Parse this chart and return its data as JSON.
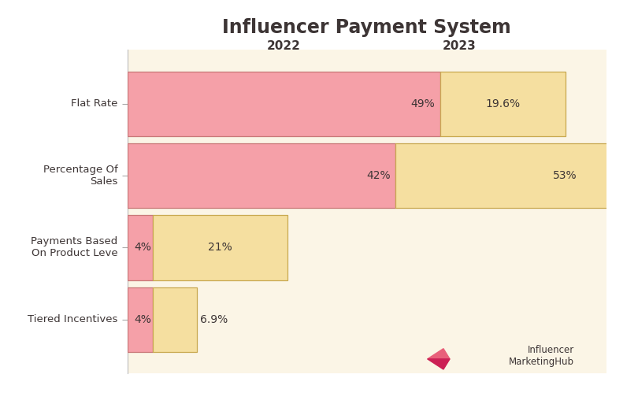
{
  "title": "Influencer Payment System",
  "categories": [
    "Tiered Incentives",
    "Payments Based\nOn Product Leve",
    "Percentage Of\nSales",
    "Flat Rate"
  ],
  "values_2022": [
    4,
    4,
    42,
    49
  ],
  "values_2023": [
    6.9,
    21,
    53,
    19.6
  ],
  "labels_2022": [
    "4%",
    "4%",
    "42%",
    "49%"
  ],
  "labels_2023": [
    "6.9%",
    "21%",
    "53%",
    "19.6%"
  ],
  "color_2022": "#F5A0A8",
  "color_2023": "#F5DFA0",
  "color_2022_border": "#C87878",
  "color_2023_border": "#C8A850",
  "bg_color": "#FBF5E6",
  "outer_bg": "#FFFFFF",
  "text_color": "#3D3535",
  "title_fontsize": 17,
  "label_fontsize": 10,
  "tick_fontsize": 9.5,
  "header_fontsize": 11,
  "bar_height": 0.45,
  "xlim_max": 75,
  "year_label_2022": "2022",
  "year_label_2023": "2023",
  "logo_color": "#CC2055"
}
